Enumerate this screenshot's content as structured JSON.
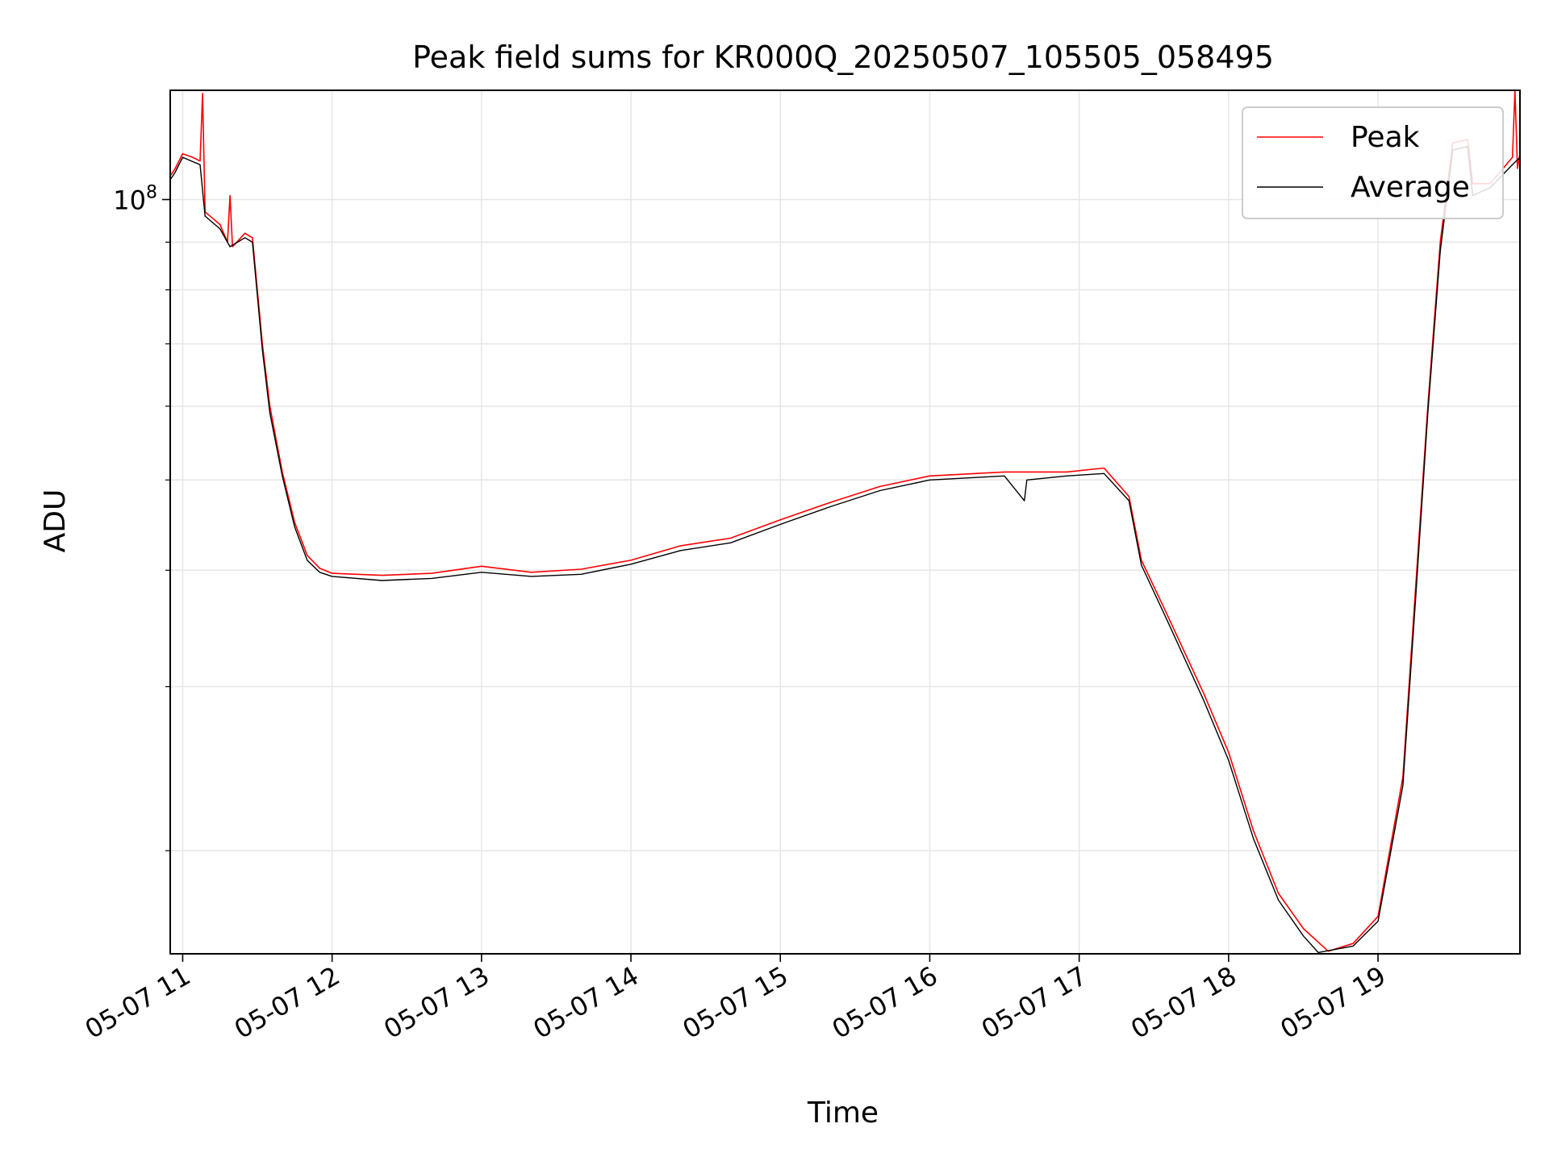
{
  "chart_data": {
    "type": "line",
    "title": "Peak field sums for KR000Q_20250507_105505_058495",
    "xlabel": "Time",
    "ylabel": "ADU",
    "y_scale": "log",
    "ylim": [
      15500000,
      131000000
    ],
    "xlim": [
      "2025-05-07 10:55",
      "2025-05-07 19:57"
    ],
    "grid": true,
    "legend_position": "top-right",
    "x_ticks": [
      {
        "t": "2025-05-07 11:00",
        "label": "05-07 11"
      },
      {
        "t": "2025-05-07 12:00",
        "label": "05-07 12"
      },
      {
        "t": "2025-05-07 13:00",
        "label": "05-07 13"
      },
      {
        "t": "2025-05-07 14:00",
        "label": "05-07 14"
      },
      {
        "t": "2025-05-07 15:00",
        "label": "05-07 15"
      },
      {
        "t": "2025-05-07 16:00",
        "label": "05-07 16"
      },
      {
        "t": "2025-05-07 17:00",
        "label": "05-07 17"
      },
      {
        "t": "2025-05-07 18:00",
        "label": "05-07 18"
      },
      {
        "t": "2025-05-07 19:00",
        "label": "05-07 19"
      }
    ],
    "y_major_ticks": [
      {
        "value": 100000000,
        "label_base": "10",
        "label_exp": "8"
      }
    ],
    "y_minor_ticks": [
      20000000,
      30000000,
      40000000,
      50000000,
      60000000,
      70000000,
      80000000,
      90000000
    ],
    "series": [
      {
        "name": "Peak",
        "color": "#ff0000",
        "points": [
          [
            "2025-05-07 10:55",
            106000000
          ],
          [
            "2025-05-07 10:57",
            108000000
          ],
          [
            "2025-05-07 11:00",
            112000000
          ],
          [
            "2025-05-07 11:04",
            111000000
          ],
          [
            "2025-05-07 11:07",
            110000000
          ],
          [
            "2025-05-07 11:08",
            130000000
          ],
          [
            "2025-05-07 11:09",
            97000000
          ],
          [
            "2025-05-07 11:15",
            94000000
          ],
          [
            "2025-05-07 11:18",
            90000000
          ],
          [
            "2025-05-07 11:19",
            101000000
          ],
          [
            "2025-05-07 11:20",
            89000000
          ],
          [
            "2025-05-07 11:25",
            92000000
          ],
          [
            "2025-05-07 11:28",
            91000000
          ],
          [
            "2025-05-07 11:32",
            70000000
          ],
          [
            "2025-05-07 11:35",
            60000000
          ],
          [
            "2025-05-07 11:40",
            51000000
          ],
          [
            "2025-05-07 11:45",
            45000000
          ],
          [
            "2025-05-07 11:50",
            41500000
          ],
          [
            "2025-05-07 11:55",
            40200000
          ],
          [
            "2025-05-07 12:00",
            39700000
          ],
          [
            "2025-05-07 12:20",
            39500000
          ],
          [
            "2025-05-07 12:40",
            39700000
          ],
          [
            "2025-05-07 13:00",
            40400000
          ],
          [
            "2025-05-07 13:20",
            39800000
          ],
          [
            "2025-05-07 13:40",
            40100000
          ],
          [
            "2025-05-07 14:00",
            41000000
          ],
          [
            "2025-05-07 14:20",
            42500000
          ],
          [
            "2025-05-07 14:40",
            43300000
          ],
          [
            "2025-05-07 15:00",
            45300000
          ],
          [
            "2025-05-07 15:20",
            47300000
          ],
          [
            "2025-05-07 15:40",
            49200000
          ],
          [
            "2025-05-07 16:00",
            50500000
          ],
          [
            "2025-05-07 16:30",
            51000000
          ],
          [
            "2025-05-07 16:55",
            51000000
          ],
          [
            "2025-05-07 17:10",
            51500000
          ],
          [
            "2025-05-07 17:20",
            48000000
          ],
          [
            "2025-05-07 17:25",
            41000000
          ],
          [
            "2025-05-07 17:35",
            36000000
          ],
          [
            "2025-05-07 17:50",
            29500000
          ],
          [
            "2025-05-07 18:00",
            25500000
          ],
          [
            "2025-05-07 18:10",
            21000000
          ],
          [
            "2025-05-07 18:20",
            18000000
          ],
          [
            "2025-05-07 18:30",
            16500000
          ],
          [
            "2025-05-07 18:40",
            15600000
          ],
          [
            "2025-05-07 18:50",
            15900000
          ],
          [
            "2025-05-07 19:00",
            17000000
          ],
          [
            "2025-05-07 19:10",
            24000000
          ],
          [
            "2025-05-07 19:15",
            38000000
          ],
          [
            "2025-05-07 19:20",
            60000000
          ],
          [
            "2025-05-07 19:25",
            90000000
          ],
          [
            "2025-05-07 19:30",
            115000000
          ],
          [
            "2025-05-07 19:36",
            116000000
          ],
          [
            "2025-05-07 19:38",
            104000000
          ],
          [
            "2025-05-07 19:45",
            104000000
          ],
          [
            "2025-05-07 19:54",
            111000000
          ],
          [
            "2025-05-07 19:55",
            131000000
          ],
          [
            "2025-05-07 19:56",
            108000000
          ],
          [
            "2025-05-07 19:57",
            112000000
          ]
        ]
      },
      {
        "name": "Average",
        "color": "#000000",
        "points": [
          [
            "2025-05-07 10:55",
            105000000
          ],
          [
            "2025-05-07 10:57",
            107000000
          ],
          [
            "2025-05-07 11:00",
            111000000
          ],
          [
            "2025-05-07 11:07",
            109000000
          ],
          [
            "2025-05-07 11:09",
            96000000
          ],
          [
            "2025-05-07 11:15",
            93000000
          ],
          [
            "2025-05-07 11:19",
            89000000
          ],
          [
            "2025-05-07 11:25",
            91000000
          ],
          [
            "2025-05-07 11:28",
            90000000
          ],
          [
            "2025-05-07 11:32",
            69000000
          ],
          [
            "2025-05-07 11:35",
            59000000
          ],
          [
            "2025-05-07 11:40",
            50500000
          ],
          [
            "2025-05-07 11:45",
            44500000
          ],
          [
            "2025-05-07 11:50",
            41000000
          ],
          [
            "2025-05-07 11:55",
            39800000
          ],
          [
            "2025-05-07 12:00",
            39400000
          ],
          [
            "2025-05-07 12:20",
            39000000
          ],
          [
            "2025-05-07 12:40",
            39200000
          ],
          [
            "2025-05-07 13:00",
            39800000
          ],
          [
            "2025-05-07 13:20",
            39400000
          ],
          [
            "2025-05-07 13:40",
            39600000
          ],
          [
            "2025-05-07 14:00",
            40600000
          ],
          [
            "2025-05-07 14:20",
            42000000
          ],
          [
            "2025-05-07 14:40",
            42800000
          ],
          [
            "2025-05-07 15:00",
            44800000
          ],
          [
            "2025-05-07 15:20",
            46800000
          ],
          [
            "2025-05-07 15:40",
            48700000
          ],
          [
            "2025-05-07 16:00",
            50000000
          ],
          [
            "2025-05-07 16:30",
            50500000
          ],
          [
            "2025-05-07 16:38",
            47500000
          ],
          [
            "2025-05-07 16:39",
            50000000
          ],
          [
            "2025-05-07 16:55",
            50500000
          ],
          [
            "2025-05-07 17:10",
            50800000
          ],
          [
            "2025-05-07 17:20",
            47500000
          ],
          [
            "2025-05-07 17:25",
            40500000
          ],
          [
            "2025-05-07 17:35",
            35500000
          ],
          [
            "2025-05-07 17:50",
            29000000
          ],
          [
            "2025-05-07 18:00",
            25000000
          ],
          [
            "2025-05-07 18:10",
            20600000
          ],
          [
            "2025-05-07 18:20",
            17700000
          ],
          [
            "2025-05-07 18:30",
            16200000
          ],
          [
            "2025-05-07 18:36",
            15550000
          ],
          [
            "2025-05-07 18:50",
            15800000
          ],
          [
            "2025-05-07 19:00",
            16800000
          ],
          [
            "2025-05-07 19:10",
            23500000
          ],
          [
            "2025-05-07 19:15",
            37000000
          ],
          [
            "2025-05-07 19:20",
            59000000
          ],
          [
            "2025-05-07 19:25",
            88000000
          ],
          [
            "2025-05-07 19:30",
            113000000
          ],
          [
            "2025-05-07 19:36",
            114000000
          ],
          [
            "2025-05-07 19:38",
            101000000
          ],
          [
            "2025-05-07 19:45",
            103000000
          ],
          [
            "2025-05-07 19:54",
            109000000
          ],
          [
            "2025-05-07 19:57",
            111000000
          ]
        ]
      }
    ]
  }
}
